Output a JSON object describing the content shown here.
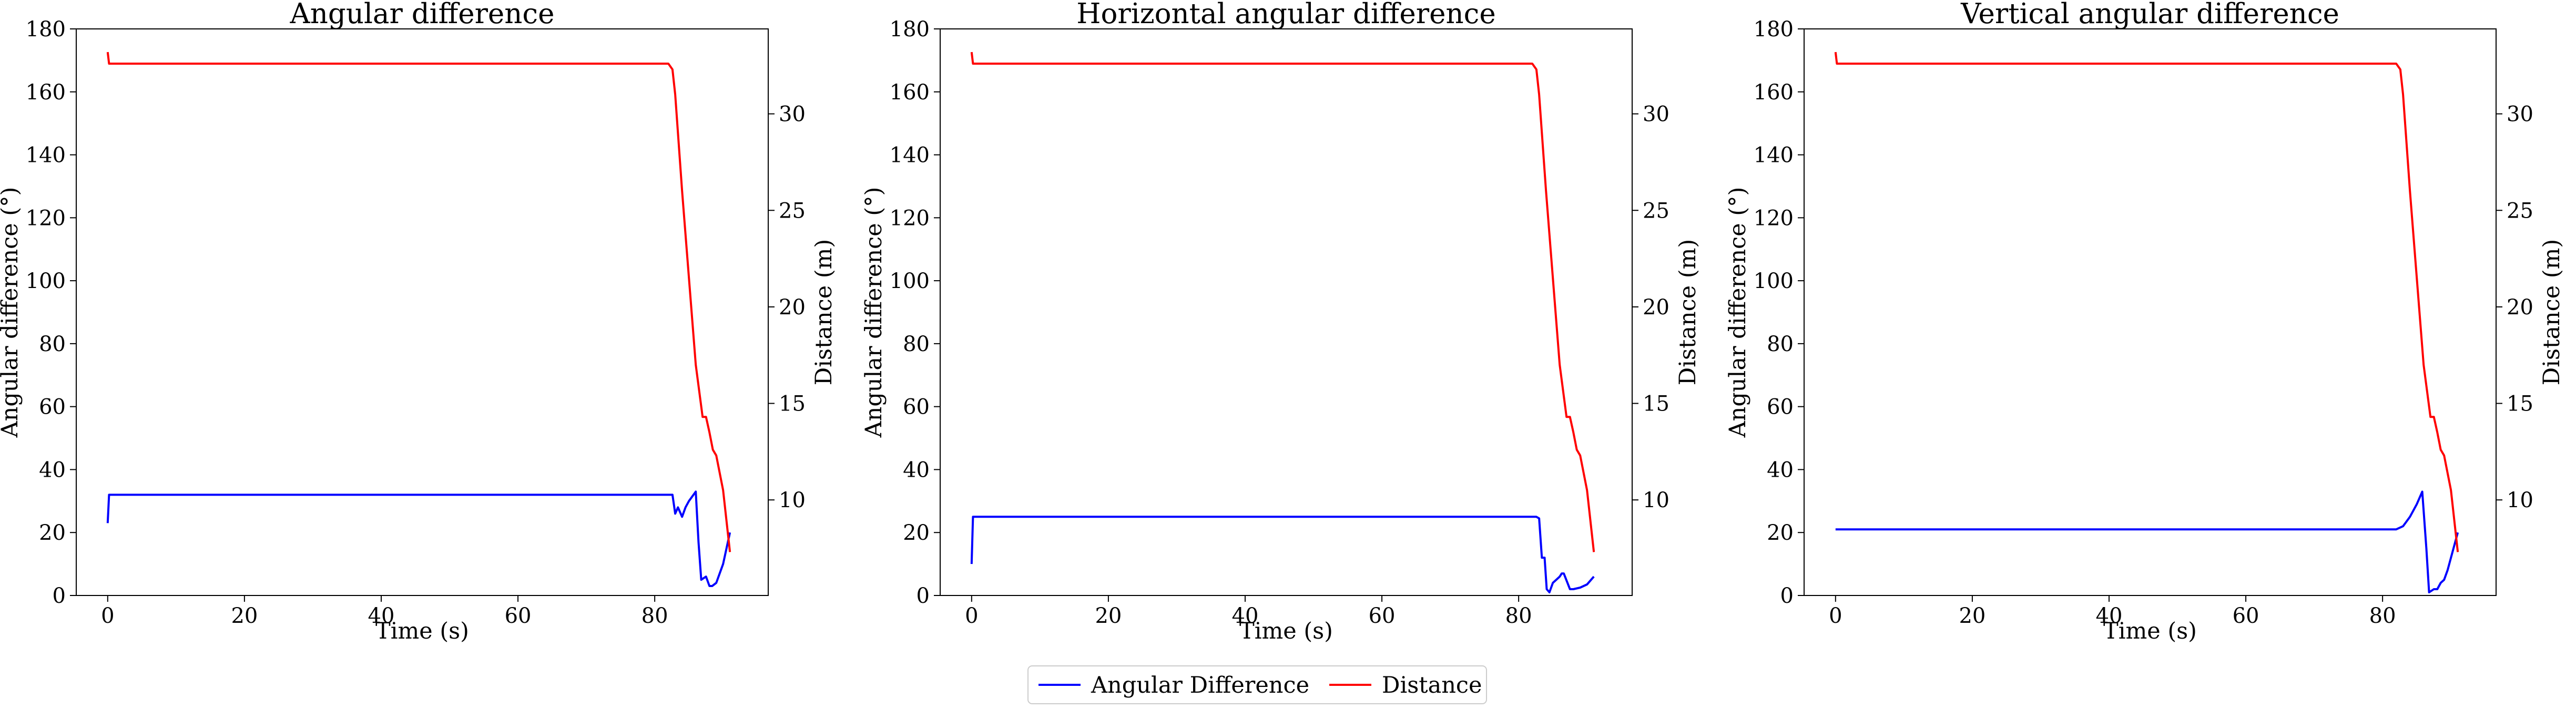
{
  "colors": {
    "angular": "#0000ff",
    "distance": "#ff0000",
    "axes": "#000000",
    "legend_border": "#cccccc"
  },
  "legend": {
    "placement": "bottom-center",
    "items": [
      "Angular Difference",
      "Distance"
    ]
  },
  "chart_data": [
    {
      "type": "line",
      "title": "Angular difference",
      "xlabel": "Time (s)",
      "ylabel": "Angular difference (°)",
      "y2label": "Distance (m)",
      "xlim": [
        -4.6,
        96.6
      ],
      "ylim": [
        0,
        180
      ],
      "y2lim": [
        5.05,
        34.4
      ],
      "xticks": [
        0,
        20,
        40,
        60,
        80
      ],
      "yticks": [
        0,
        20,
        40,
        60,
        80,
        100,
        120,
        140,
        160,
        180
      ],
      "y2ticks": [
        10,
        15,
        20,
        25,
        30
      ],
      "grid": false,
      "series": [
        {
          "name": "Angular Difference",
          "axis": "left",
          "x": [
            0,
            0.2,
            82,
            82.6,
            83,
            83.4,
            84,
            84.5,
            85,
            86,
            86.4,
            86.8,
            87.5,
            88,
            88.4,
            89,
            90,
            91
          ],
          "y": [
            23,
            32,
            32,
            32,
            26,
            28,
            25,
            28,
            30,
            33,
            17,
            5,
            6,
            3,
            3,
            4,
            10,
            20
          ]
        },
        {
          "name": "Distance",
          "axis": "right",
          "x": [
            0,
            0.2,
            82,
            82.6,
            83,
            84,
            85,
            86,
            87,
            87.5,
            88,
            88.5,
            89,
            90,
            91
          ],
          "y": [
            33.2,
            32.6,
            32.6,
            32.3,
            31,
            26,
            21.5,
            17,
            14.3,
            14.3,
            13.5,
            12.6,
            12.3,
            10.5,
            7.3
          ]
        }
      ]
    },
    {
      "type": "line",
      "title": "Horizontal angular difference",
      "xlabel": "Time (s)",
      "ylabel": "Angular difference (°)",
      "y2label": "Distance (m)",
      "xlim": [
        -4.6,
        96.6
      ],
      "ylim": [
        0,
        180
      ],
      "y2lim": [
        5.05,
        34.4
      ],
      "xticks": [
        0,
        20,
        40,
        60,
        80
      ],
      "yticks": [
        0,
        20,
        40,
        60,
        80,
        100,
        120,
        140,
        160,
        180
      ],
      "y2ticks": [
        10,
        15,
        20,
        25,
        30
      ],
      "grid": false,
      "series": [
        {
          "name": "Angular Difference",
          "axis": "left",
          "x": [
            0,
            0.2,
            82,
            82.6,
            83,
            83.4,
            83.8,
            84.1,
            84.5,
            85,
            85.5,
            86,
            86.3,
            86.6,
            87.5,
            88,
            89,
            90,
            91
          ],
          "y": [
            10,
            25,
            25,
            25,
            24.5,
            12,
            12,
            2,
            1,
            4,
            5,
            6,
            7,
            7,
            2,
            2,
            2.5,
            3.5,
            6
          ]
        },
        {
          "name": "Distance",
          "axis": "right",
          "x": [
            0,
            0.2,
            82,
            82.6,
            83,
            84,
            85,
            86,
            87,
            87.5,
            88,
            88.5,
            89,
            90,
            91
          ],
          "y": [
            33.2,
            32.6,
            32.6,
            32.3,
            31,
            26,
            21.5,
            17,
            14.3,
            14.3,
            13.5,
            12.6,
            12.3,
            10.5,
            7.3
          ]
        }
      ]
    },
    {
      "type": "line",
      "title": "Vertical angular difference",
      "xlabel": "Time (s)",
      "ylabel": "Angular difference (°)",
      "y2label": "Distance (m)",
      "xlim": [
        -4.6,
        96.6
      ],
      "ylim": [
        0,
        180
      ],
      "y2lim": [
        5.05,
        34.4
      ],
      "xticks": [
        0,
        20,
        40,
        60,
        80
      ],
      "yticks": [
        0,
        20,
        40,
        60,
        80,
        100,
        120,
        140,
        160,
        180
      ],
      "y2ticks": [
        10,
        15,
        20,
        25,
        30
      ],
      "grid": false,
      "series": [
        {
          "name": "Angular Difference",
          "axis": "left",
          "x": [
            0,
            82,
            83,
            84,
            85,
            85.8,
            86.4,
            86.8,
            87.5,
            88,
            88.5,
            89,
            89.5,
            90,
            91
          ],
          "y": [
            21,
            21,
            22,
            25,
            29,
            33,
            15,
            1,
            2,
            2,
            4,
            5,
            8,
            12,
            20
          ]
        },
        {
          "name": "Distance",
          "axis": "right",
          "x": [
            0,
            0.2,
            82,
            82.6,
            83,
            84,
            85,
            86,
            87,
            87.5,
            88,
            88.5,
            89,
            90,
            91
          ],
          "y": [
            33.2,
            32.6,
            32.6,
            32.3,
            31,
            26,
            21.5,
            17,
            14.3,
            14.3,
            13.5,
            12.6,
            12.3,
            10.5,
            7.3
          ]
        }
      ]
    }
  ]
}
